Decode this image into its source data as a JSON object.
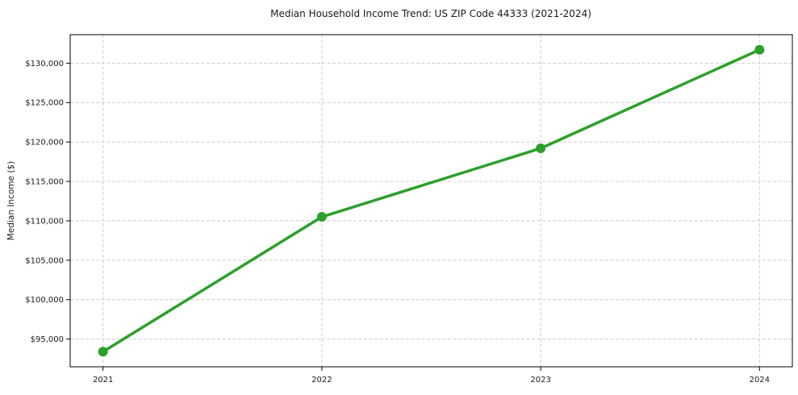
{
  "chart_data": {
    "type": "line",
    "title": "Median Household Income Trend: US ZIP Code 44333 (2021-2024)",
    "xlabel": "",
    "ylabel": "Median Income ($)",
    "x": [
      2021,
      2022,
      2023,
      2024
    ],
    "values": [
      93400,
      110500,
      119200,
      131700
    ],
    "series_name": "Median Household Income",
    "xlim": [
      2020.85,
      2024.15
    ],
    "ylim": [
      91485,
      133615
    ],
    "yticks": [
      95000,
      100000,
      105000,
      110000,
      115000,
      120000,
      125000,
      130000
    ],
    "ytick_labels": [
      "$95,000",
      "$100,000",
      "$105,000",
      "$110,000",
      "$115,000",
      "$120,000",
      "$125,000",
      "$130,000"
    ],
    "xtick_labels": [
      "2021",
      "2022",
      "2023",
      "2024"
    ],
    "grid": true,
    "legend": "none",
    "line_color": "#2ca02c",
    "marker_color": "#2ca02c",
    "grid_color": "#cccccc",
    "axis_color": "#000000",
    "text_color": "#1a1a1a",
    "background_color": "#ffffff"
  }
}
